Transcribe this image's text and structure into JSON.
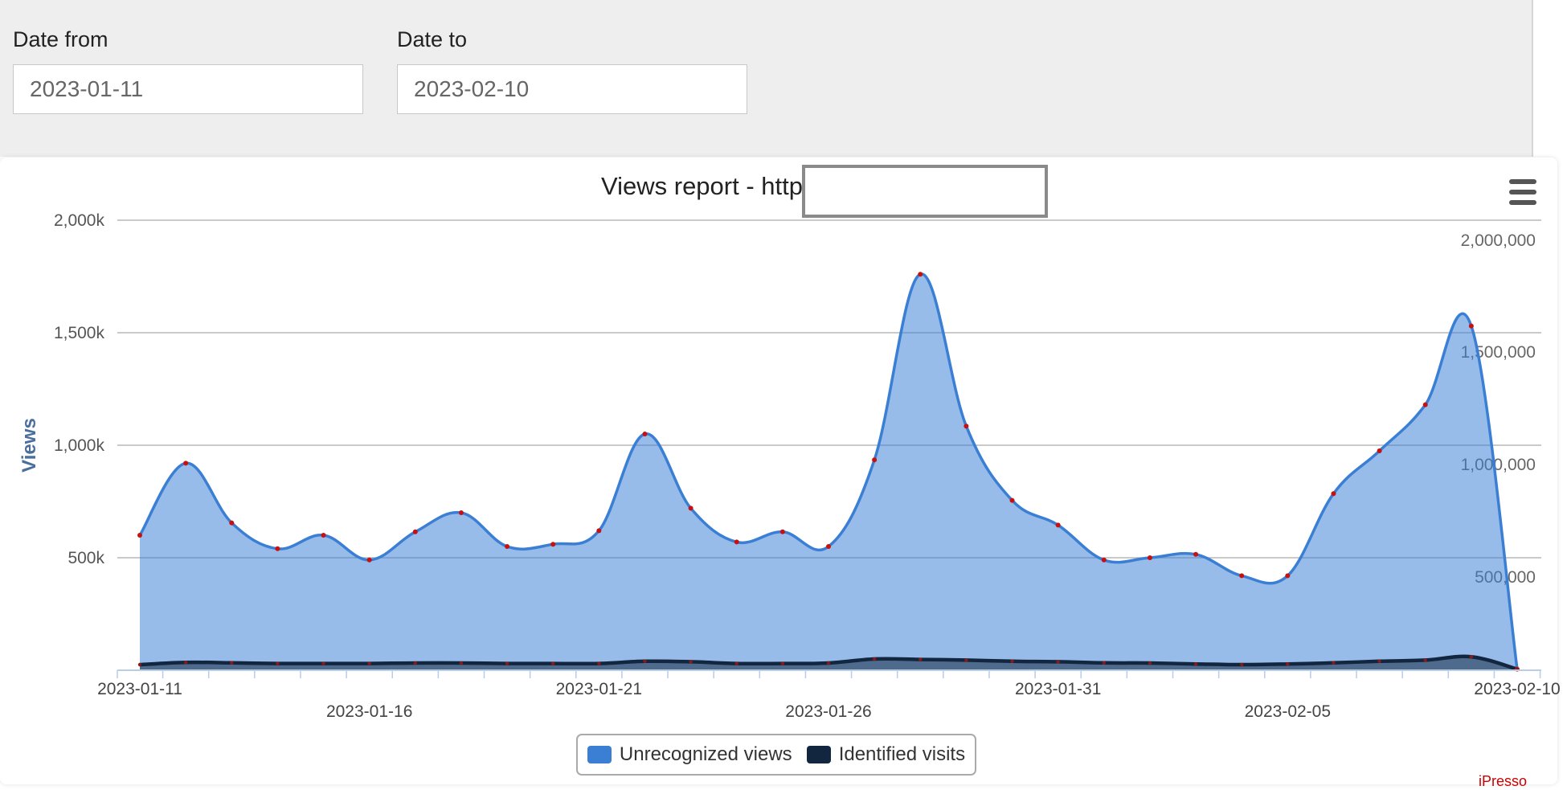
{
  "filters": {
    "date_from_label": "Date from",
    "date_from_value": "2023-01-11",
    "date_to_label": "Date to",
    "date_to_value": "2023-02-10"
  },
  "chart": {
    "menu_icon": "hamburger-menu-icon",
    "credits": "iPresso"
  },
  "chart_data": {
    "type": "area",
    "title": "Views report - http",
    "ylabel": "Views",
    "ylim": [
      0,
      2000000
    ],
    "y_ticks": [
      "500k",
      "1,000k",
      "1,500k",
      "2,000k"
    ],
    "y_ticks_right": [
      "500,000",
      "1,000,000",
      "1,500,000",
      "2,000,000"
    ],
    "x": [
      "2023-01-11",
      "2023-01-12",
      "2023-01-13",
      "2023-01-14",
      "2023-01-15",
      "2023-01-16",
      "2023-01-17",
      "2023-01-18",
      "2023-01-19",
      "2023-01-20",
      "2023-01-21",
      "2023-01-22",
      "2023-01-23",
      "2023-01-24",
      "2023-01-25",
      "2023-01-26",
      "2023-01-27",
      "2023-01-28",
      "2023-01-29",
      "2023-01-30",
      "2023-01-31",
      "2023-02-01",
      "2023-02-02",
      "2023-02-03",
      "2023-02-04",
      "2023-02-05",
      "2023-02-06",
      "2023-02-07",
      "2023-02-08",
      "2023-02-09",
      "2023-02-10"
    ],
    "x_tick_labels": [
      "2023-01-11",
      "2023-01-16",
      "2023-01-21",
      "2023-01-26",
      "2023-01-31",
      "2023-02-05",
      "2023-02-10"
    ],
    "series": [
      {
        "name": "Unrecognized views",
        "color": "#3a7fd4",
        "values": [
          600000,
          920000,
          655000,
          540000,
          600000,
          490000,
          615000,
          700000,
          550000,
          560000,
          620000,
          1050000,
          720000,
          570000,
          615000,
          550000,
          935000,
          1760000,
          1085000,
          755000,
          645000,
          490000,
          500000,
          515000,
          420000,
          420000,
          785000,
          975000,
          1180000,
          1530000,
          5000
        ]
      },
      {
        "name": "Identified visits",
        "color": "#13263f",
        "values": [
          25000,
          35000,
          33000,
          30000,
          30000,
          30000,
          32000,
          32000,
          30000,
          30000,
          30000,
          40000,
          38000,
          30000,
          30000,
          32000,
          50000,
          48000,
          45000,
          40000,
          38000,
          33000,
          32000,
          28000,
          25000,
          28000,
          33000,
          40000,
          45000,
          60000,
          5000
        ]
      }
    ],
    "legend_position": "bottom-center",
    "grid": true
  }
}
